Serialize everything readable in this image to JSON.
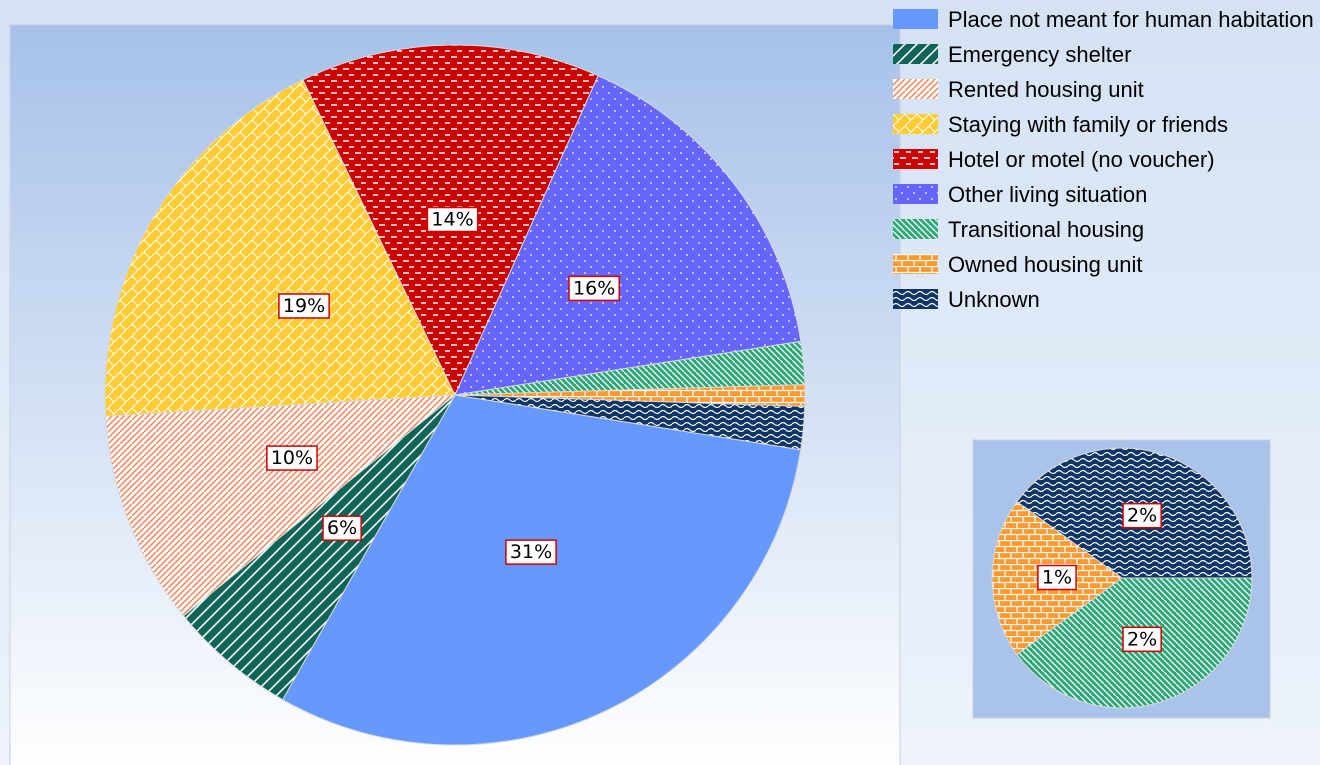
{
  "chart_data": {
    "type": "pie",
    "categories": [
      "Place not meant for human habitation",
      "Emergency shelter",
      "Rented housing unit",
      "Staying with family or friends",
      "Hotel or motel (no voucher)",
      "Other living situation",
      "Transitional housing",
      "Owned housing unit",
      "Unknown"
    ],
    "values": [
      31,
      6,
      10,
      19,
      14,
      16,
      2,
      1,
      2
    ],
    "value_labels": [
      "31%",
      "6%",
      "10%",
      "19%",
      "14%",
      "16%",
      "2%",
      "1%",
      "2%"
    ],
    "colors": [
      "#6699ff",
      "#0f6457",
      "#ee8c66",
      "#ffcc33",
      "#cc0000",
      "#6666ff",
      "#2fa878",
      "#ff9933",
      "#0f3567"
    ],
    "legend": "top-right"
  }
}
